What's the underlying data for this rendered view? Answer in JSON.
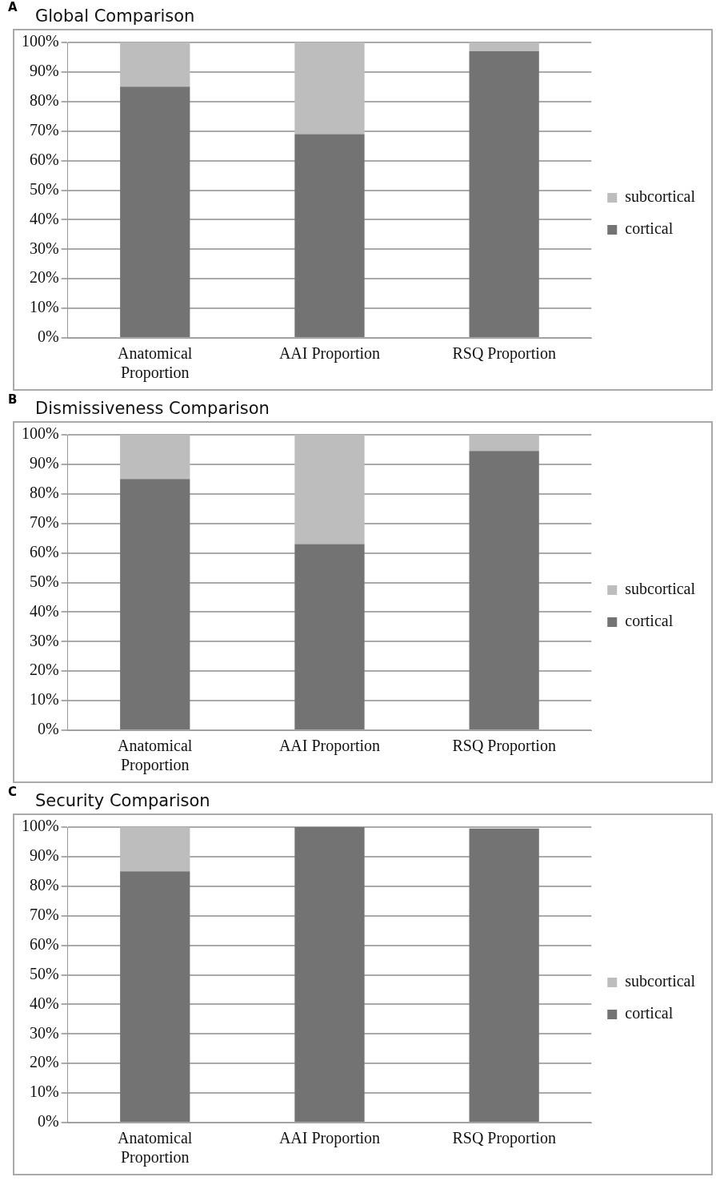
{
  "chart_data": [
    {
      "type": "bar",
      "title": "Global Comparison",
      "annotations": [
        "A"
      ],
      "categories": [
        "Anatomical Proportion",
        "AAI Proportion",
        "RSQ Proportion"
      ],
      "stacked": true,
      "legend": "right",
      "grid": "y",
      "ylim": [
        0,
        100
      ],
      "yticks": [
        {
          "value": 0,
          "label": "0%"
        },
        {
          "value": 10,
          "label": "10%"
        },
        {
          "value": 20,
          "label": "20%"
        },
        {
          "value": 30,
          "label": "30%"
        },
        {
          "value": 40,
          "label": "40%"
        },
        {
          "value": 50,
          "label": "50%"
        },
        {
          "value": 60,
          "label": "60%"
        },
        {
          "value": 70,
          "label": "70%"
        },
        {
          "value": 80,
          "label": "80%"
        },
        {
          "value": 90,
          "label": "90%"
        },
        {
          "value": 100,
          "label": "100%"
        }
      ],
      "series": [
        {
          "name": "cortical",
          "color": "#737373",
          "values": [
            85,
            69,
            97
          ]
        },
        {
          "name": "subcortical",
          "color": "#bdbdbd",
          "values": [
            15,
            31,
            3
          ]
        }
      ]
    },
    {
      "type": "bar",
      "title": "Dismissiveness Comparison",
      "annotations": [
        "B"
      ],
      "categories": [
        "Anatomical Proportion",
        "AAI Proportion",
        "RSQ Proportion"
      ],
      "stacked": true,
      "legend": "right",
      "grid": "y",
      "ylim": [
        0,
        100
      ],
      "yticks": [
        {
          "value": 0,
          "label": "0%"
        },
        {
          "value": 10,
          "label": "10%"
        },
        {
          "value": 20,
          "label": "20%"
        },
        {
          "value": 30,
          "label": "30%"
        },
        {
          "value": 40,
          "label": "40%"
        },
        {
          "value": 50,
          "label": "50%"
        },
        {
          "value": 60,
          "label": "60%"
        },
        {
          "value": 70,
          "label": "70%"
        },
        {
          "value": 80,
          "label": "80%"
        },
        {
          "value": 90,
          "label": "90%"
        },
        {
          "value": 100,
          "label": "100%"
        }
      ],
      "series": [
        {
          "name": "cortical",
          "color": "#737373",
          "values": [
            85,
            63,
            94.5
          ]
        },
        {
          "name": "subcortical",
          "color": "#bdbdbd",
          "values": [
            15,
            37,
            5.5
          ]
        }
      ]
    },
    {
      "type": "bar",
      "title": "Security Comparison",
      "annotations": [
        "C"
      ],
      "categories": [
        "Anatomical Proportion",
        "AAI Proportion",
        "RSQ Proportion"
      ],
      "stacked": true,
      "legend": "right",
      "grid": "y",
      "ylim": [
        0,
        100
      ],
      "yticks": [
        {
          "value": 0,
          "label": "0%"
        },
        {
          "value": 10,
          "label": "10%"
        },
        {
          "value": 20,
          "label": "20%"
        },
        {
          "value": 30,
          "label": "30%"
        },
        {
          "value": 40,
          "label": "40%"
        },
        {
          "value": 50,
          "label": "50%"
        },
        {
          "value": 60,
          "label": "60%"
        },
        {
          "value": 70,
          "label": "70%"
        },
        {
          "value": 80,
          "label": "80%"
        },
        {
          "value": 90,
          "label": "90%"
        },
        {
          "value": 100,
          "label": "100%"
        }
      ],
      "series": [
        {
          "name": "cortical",
          "color": "#737373",
          "values": [
            85,
            100,
            99.5
          ]
        },
        {
          "name": "subcortical",
          "color": "#bdbdbd",
          "values": [
            15,
            0,
            null
          ]
        }
      ]
    }
  ]
}
